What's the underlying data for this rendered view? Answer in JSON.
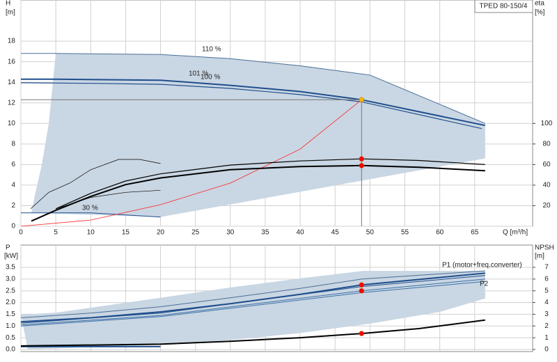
{
  "chart_data": [
    {
      "type": "line",
      "title": "TPED 80-150/4",
      "ylabel": "H",
      "ylabel_unit": "[m]",
      "y2label": "eta",
      "y2label_unit": "[%]",
      "xlabel": "Q [m³/h]",
      "xlim": [
        0,
        73.3
      ],
      "ylim": [
        0,
        22
      ],
      "y2lim": [
        0,
        220
      ],
      "xticks": [
        0,
        5,
        10,
        15,
        20,
        25,
        30,
        35,
        40,
        45,
        50,
        55,
        60,
        65
      ],
      "yticks": [
        0,
        2,
        4,
        6,
        8,
        10,
        12,
        14,
        16,
        18
      ],
      "y2ticks": [
        20,
        40,
        60,
        80,
        100
      ],
      "grid": true,
      "annotations": [
        "110 %",
        "101 %",
        "100 %",
        "30 %"
      ],
      "series": [
        {
          "kind": "area",
          "color": "#c9d6e3",
          "x": [
            1.5,
            2,
            3,
            4,
            5,
            20,
            30,
            40,
            50,
            66.5,
            66.5,
            20,
            1.5
          ],
          "values": [
            1.3,
            3,
            6,
            10,
            16.8,
            16.7,
            16.3,
            15.6,
            14.7,
            10.0,
            6.6,
            0.9,
            1.3
          ]
        },
        {
          "color": "#4a6f96",
          "width": 1,
          "x": [
            0,
            5,
            20,
            30,
            40,
            50,
            66.5
          ],
          "values": [
            16.8,
            16.8,
            16.7,
            16.3,
            15.6,
            14.7,
            10.0
          ]
        },
        {
          "color": "#1f4e8c",
          "width": 2,
          "x": [
            0,
            5,
            20,
            30,
            40,
            48.8,
            66.5
          ],
          "values": [
            14.3,
            14.3,
            14.2,
            13.7,
            13.1,
            12.3,
            9.8
          ]
        },
        {
          "color": "#1f4e8c",
          "width": 1.2,
          "x": [
            0,
            10,
            20,
            30,
            40,
            48.8,
            66
          ],
          "values": [
            13.95,
            13.9,
            13.8,
            13.4,
            12.8,
            12.1,
            9.5
          ]
        },
        {
          "color": "#1f4e8c",
          "width": 1,
          "x": [
            0,
            10,
            20
          ],
          "values": [
            1.3,
            1.3,
            0.9
          ]
        },
        {
          "color": "#ff2020",
          "width": 0.8,
          "x": [
            0,
            10,
            20,
            30,
            40,
            48.8
          ],
          "values": [
            0,
            0.6,
            2.1,
            4.2,
            7.5,
            12.3
          ]
        },
        {
          "axis": "y2",
          "color": "#000000",
          "width": 2,
          "x": [
            1.5,
            5,
            10,
            15,
            20,
            30,
            40,
            48.8,
            57,
            66.5
          ],
          "values": [
            5,
            15.5,
            29,
            40.5,
            47,
            55,
            58,
            59,
            57.4,
            54
          ]
        },
        {
          "axis": "y2",
          "color": "#000000",
          "width": 1.2,
          "x": [
            5,
            10,
            15,
            20,
            30,
            40,
            48.8,
            57,
            66.5
          ],
          "values": [
            17,
            32,
            44,
            51,
            59.5,
            63.5,
            65.5,
            64,
            60
          ]
        },
        {
          "axis": "y2",
          "color": "#000000",
          "width": 0.7,
          "x": [
            1.4,
            4,
            7,
            10,
            14,
            17,
            20
          ],
          "values": [
            17,
            33,
            42,
            55,
            65,
            65,
            61
          ]
        },
        {
          "axis": "y2",
          "color": "#000000",
          "width": 0.7,
          "x": [
            5,
            10,
            15,
            20
          ],
          "values": [
            17,
            28,
            33,
            35
          ]
        }
      ],
      "points": [
        {
          "x": 48.8,
          "y": 12.3,
          "color": "#f5b800",
          "guides": true
        },
        {
          "x": 48.8,
          "y": 65.5,
          "axis": "y2",
          "color": "#ff0000"
        },
        {
          "x": 48.8,
          "y": 59,
          "axis": "y2",
          "color": "#ff0000"
        }
      ]
    },
    {
      "type": "line",
      "ylabel": "P",
      "ylabel_unit": "[kW]",
      "y2label": "NPSH",
      "y2label_unit": "[m]",
      "xlim": [
        0,
        73.3
      ],
      "ylim": [
        -0.09,
        4.45
      ],
      "y2lim": [
        -0.18,
        8.9
      ],
      "yticks": [
        {
          "value": 0,
          "label": "0.0"
        },
        0.5,
        {
          "value": 1,
          "label": "1.0"
        },
        1.5,
        {
          "value": 2,
          "label": "2.0"
        },
        2.5,
        {
          "value": 3,
          "label": "3.0"
        },
        3.5
      ],
      "y2ticks": [
        0,
        1,
        2,
        3,
        4,
        5,
        6,
        7
      ],
      "grid": true,
      "annotations": [
        "P1 (motor+freq.converter)",
        "P2"
      ],
      "series": [
        {
          "kind": "area",
          "color": "#c9d6e3",
          "x": [
            0,
            5,
            20,
            30,
            40,
            49,
            66.5,
            66.5,
            60,
            50,
            40,
            30,
            20,
            10,
            1
          ],
          "values": [
            1.48,
            1.57,
            2.2,
            2.64,
            3.03,
            3.35,
            3.35,
            2.17,
            1.6,
            1.1,
            0.7,
            0.4,
            0.2,
            0.1,
            0
          ]
        },
        {
          "color": "#4a6f96",
          "width": 1,
          "x": [
            0,
            10,
            20,
            30,
            40,
            48.8,
            66.5
          ],
          "values": [
            1.35,
            1.55,
            1.82,
            2.2,
            2.6,
            3.0,
            3.35
          ]
        },
        {
          "color": "#1f4e8c",
          "width": 2,
          "x": [
            0,
            10,
            20,
            30,
            40,
            48.8,
            66.5
          ],
          "values": [
            1.18,
            1.35,
            1.6,
            1.95,
            2.35,
            2.75,
            3.25
          ]
        },
        {
          "color": "#1f4e8c",
          "width": 1,
          "x": [
            0,
            20,
            48.8,
            66.5
          ],
          "values": [
            1.12,
            1.55,
            2.68,
            3.15
          ]
        },
        {
          "color": "#3a6ea5",
          "width": 1,
          "x": [
            0,
            20,
            48.8,
            66.5
          ],
          "values": [
            1.05,
            1.45,
            2.5,
            3.0
          ]
        },
        {
          "color": "#3a6ea5",
          "width": 1,
          "x": [
            0,
            20,
            48.8,
            66.5
          ],
          "values": [
            1.0,
            1.4,
            2.42,
            2.9
          ]
        },
        {
          "color": "#1f4e8c",
          "width": 2,
          "x": [
            0,
            20
          ],
          "values": [
            0.12,
            0.12
          ]
        },
        {
          "axis": "y2",
          "color": "#000000",
          "width": 2,
          "x": [
            0,
            20,
            30,
            40,
            48.8,
            57,
            66.5
          ],
          "values": [
            0.3,
            0.45,
            0.7,
            1.0,
            1.36,
            1.78,
            2.5
          ]
        }
      ],
      "points": [
        {
          "x": 48.8,
          "y": 2.75,
          "color": "#ff0000"
        },
        {
          "x": 48.8,
          "y": 2.5,
          "color": "#ff0000"
        },
        {
          "x": 48.8,
          "y": 1.36,
          "axis": "y2",
          "color": "#ff0000"
        }
      ]
    }
  ]
}
